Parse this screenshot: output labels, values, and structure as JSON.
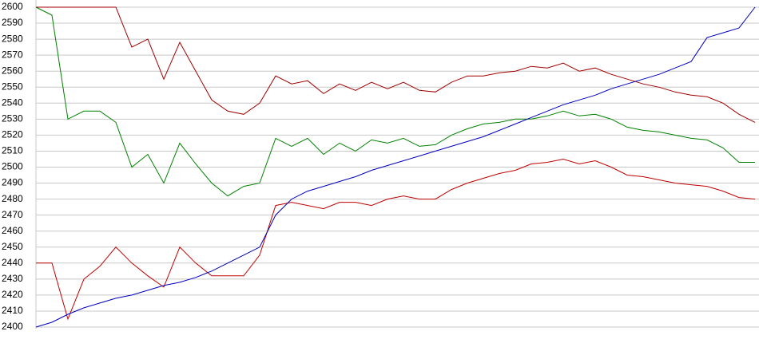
{
  "chart_data": {
    "type": "line",
    "ylim": [
      2400,
      2600
    ],
    "yticks": [
      2400,
      2410,
      2420,
      2430,
      2440,
      2450,
      2460,
      2470,
      2480,
      2490,
      2500,
      2510,
      2520,
      2530,
      2540,
      2550,
      2560,
      2570,
      2580,
      2590,
      2600
    ],
    "grid": true,
    "series": [
      {
        "color": "#a00000",
        "values": [
          2600,
          2600,
          2600,
          2600,
          2600,
          2600,
          2575,
          2580,
          2555,
          2578,
          2560,
          2542,
          2535,
          2533,
          2540,
          2557,
          2552,
          2554,
          2546,
          2552,
          2548,
          2553,
          2549,
          2553,
          2548,
          2547,
          2553,
          2557,
          2557,
          2559,
          2560,
          2563,
          2562,
          2565,
          2560,
          2562,
          2558,
          2555,
          2552,
          2550,
          2547,
          2545,
          2544,
          2540,
          2533,
          2528
        ]
      },
      {
        "color": "#008000",
        "values": [
          2600,
          2595,
          2530,
          2535,
          2535,
          2528,
          2500,
          2508,
          2490,
          2515,
          2502,
          2490,
          2482,
          2488,
          2490,
          2518,
          2513,
          2518,
          2508,
          2515,
          2510,
          2517,
          2515,
          2518,
          2513,
          2514,
          2520,
          2524,
          2527,
          2528,
          2530,
          2530,
          2532,
          2535,
          2532,
          2533,
          2530,
          2525,
          2523,
          2522,
          2520,
          2518,
          2517,
          2512,
          2503,
          2503
        ]
      },
      {
        "color": "#c00000",
        "values": [
          2440,
          2440,
          2405,
          2430,
          2438,
          2450,
          2440,
          2432,
          2425,
          2450,
          2440,
          2432,
          2432,
          2432,
          2445,
          2476,
          2478,
          2476,
          2474,
          2478,
          2478,
          2476,
          2480,
          2482,
          2480,
          2480,
          2486,
          2490,
          2493,
          2496,
          2498,
          2502,
          2503,
          2505,
          2502,
          2504,
          2500,
          2495,
          2494,
          2492,
          2490,
          2489,
          2488,
          2485,
          2481,
          2480
        ]
      },
      {
        "color": "#0000c0",
        "values": [
          2400,
          2403,
          2408,
          2412,
          2415,
          2418,
          2420,
          2423,
          2426,
          2428,
          2431,
          2435,
          2440,
          2445,
          2450,
          2470,
          2480,
          2485,
          2488,
          2491,
          2494,
          2498,
          2501,
          2504,
          2507,
          2510,
          2513,
          2516,
          2519,
          2523,
          2527,
          2531,
          2535,
          2539,
          2542,
          2545,
          2549,
          2552,
          2555,
          2558,
          2562,
          2566,
          2581,
          2584,
          2587,
          2600
        ]
      }
    ]
  }
}
